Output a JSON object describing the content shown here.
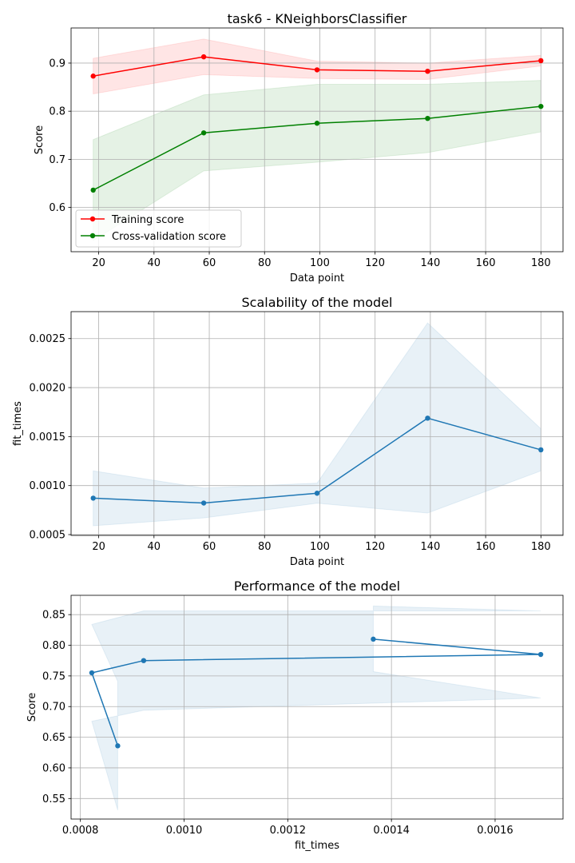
{
  "chart_data": [
    {
      "type": "line",
      "title": "task6 - KNeighborsClassifier",
      "xlabel": "Data point",
      "ylabel": "Score",
      "xlim": [
        10,
        188
      ],
      "ylim": [
        0.508,
        0.973
      ],
      "xticks": [
        20,
        40,
        60,
        80,
        100,
        120,
        140,
        160,
        180
      ],
      "yticks": [
        0.6,
        0.7,
        0.8,
        0.9
      ],
      "ytick_decimals": 1,
      "grid": true,
      "legend": "lower-left",
      "series": [
        {
          "name": "Training score",
          "color": "#ff0000",
          "x": [
            18,
            58,
            99,
            139,
            180
          ],
          "y": [
            0.873,
            0.913,
            0.886,
            0.883,
            0.905
          ],
          "band_low": [
            0.836,
            0.876,
            0.868,
            0.866,
            0.894
          ],
          "band_high": [
            0.91,
            0.95,
            0.904,
            0.9,
            0.916
          ],
          "band_color": "#ff0000"
        },
        {
          "name": "Cross-validation score",
          "color": "#008000",
          "x": [
            18,
            58,
            99,
            139,
            180
          ],
          "y": [
            0.636,
            0.755,
            0.775,
            0.785,
            0.81
          ],
          "band_low": [
            0.531,
            0.676,
            0.694,
            0.714,
            0.757
          ],
          "band_high": [
            0.741,
            0.834,
            0.856,
            0.856,
            0.864
          ],
          "band_color": "#008000"
        }
      ]
    },
    {
      "type": "line",
      "title": "Scalability of the model",
      "xlabel": "Data point",
      "ylabel": "fit_times",
      "xlim": [
        10,
        188
      ],
      "ylim": [
        0.000492,
        0.002775
      ],
      "xticks": [
        20,
        40,
        60,
        80,
        100,
        120,
        140,
        160,
        180
      ],
      "yticks": [
        0.0005,
        0.001,
        0.0015,
        0.002,
        0.0025
      ],
      "ytick_decimals": 4,
      "grid": true,
      "series": [
        {
          "color": "#1f77b4",
          "x": [
            18,
            58,
            99,
            139,
            180
          ],
          "y": [
            0.000872,
            0.000822,
            0.000922,
            0.001688,
            0.001365
          ],
          "band_low": [
            0.00059,
            0.00067,
            0.00082,
            0.00072,
            0.00115
          ],
          "band_high": [
            0.00115,
            0.000975,
            0.001025,
            0.00266,
            0.00158
          ],
          "band_color": "#1f77b4"
        }
      ]
    },
    {
      "type": "line",
      "title": "Performance of the model",
      "xlabel": "fit_times",
      "ylabel": "Score",
      "xlim": [
        0.000782,
        0.001731
      ],
      "ylim": [
        0.5165,
        0.8815
      ],
      "xticks": [
        0.0008,
        0.001,
        0.0012,
        0.0014,
        0.0016
      ],
      "yticks": [
        0.55,
        0.6,
        0.65,
        0.7,
        0.75,
        0.8,
        0.85
      ],
      "xtick_decimals": 4,
      "ytick_decimals": 2,
      "grid": true,
      "series": [
        {
          "color": "#1f77b4",
          "x": [
            0.000872,
            0.000822,
            0.000922,
            0.001688,
            0.001365
          ],
          "y": [
            0.636,
            0.755,
            0.775,
            0.785,
            0.81
          ],
          "band_low": [
            0.531,
            0.676,
            0.694,
            0.714,
            0.757
          ],
          "band_high": [
            0.741,
            0.834,
            0.856,
            0.856,
            0.864
          ],
          "band_color": "#1f77b4"
        }
      ]
    }
  ]
}
